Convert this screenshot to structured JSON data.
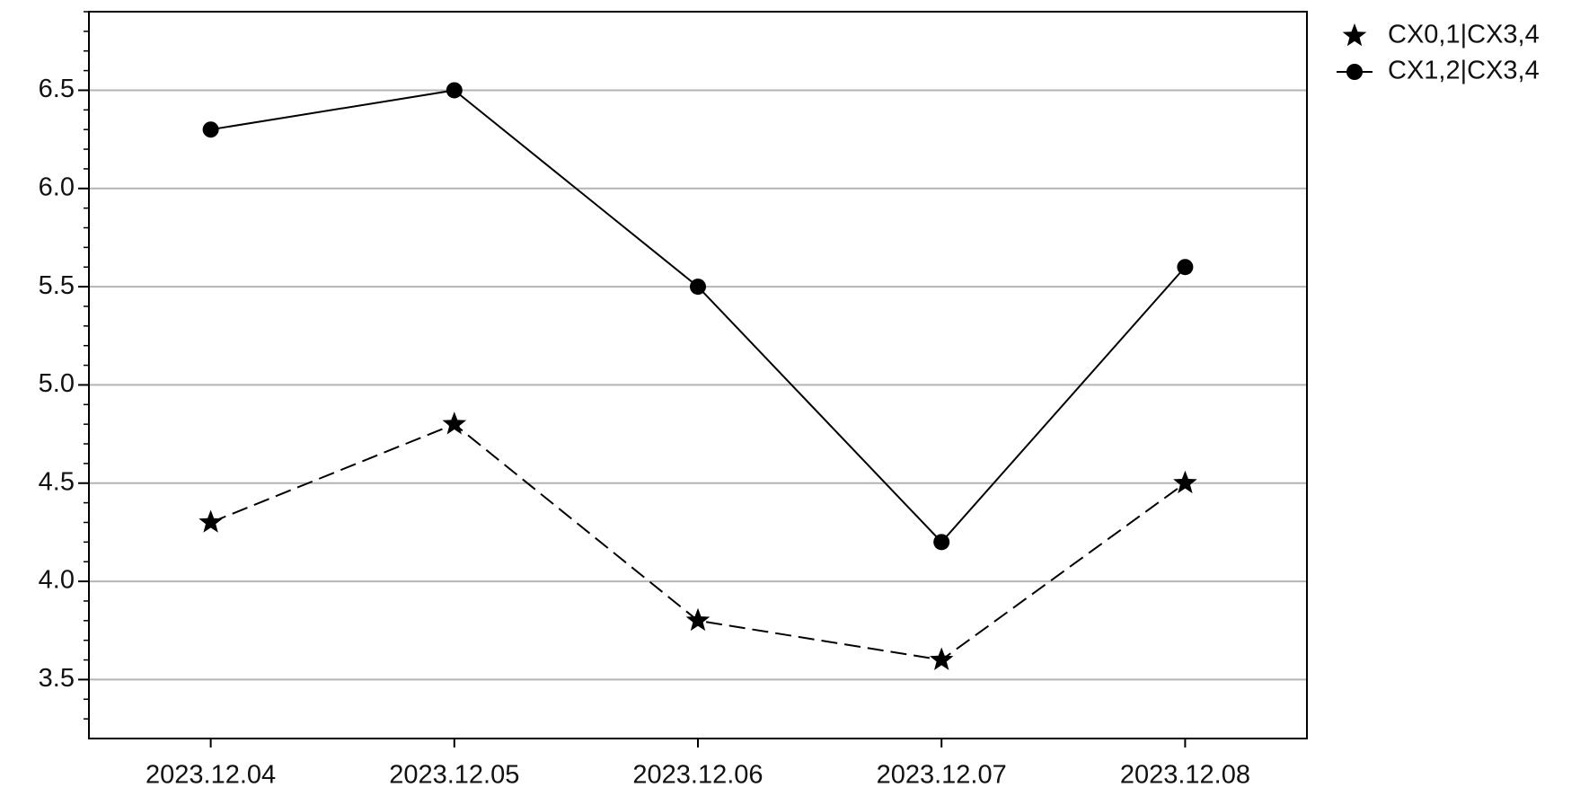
{
  "chart_data": {
    "type": "line",
    "categories": [
      "2023.12.04",
      "2023.12.05",
      "2023.12.06",
      "2023.12.07",
      "2023.12.08"
    ],
    "series": [
      {
        "name": "CX0,1|CX3,4",
        "color": "#000000",
        "marker": "star",
        "linestyle": "dashed",
        "values": [
          4.3,
          4.8,
          3.8,
          3.6,
          4.5
        ]
      },
      {
        "name": "CX1,2|CX3,4",
        "color": "#000000",
        "marker": "circle",
        "linestyle": "solid",
        "values": [
          6.3,
          6.5,
          5.5,
          4.2,
          5.6
        ]
      }
    ],
    "ylim": [
      3.2,
      6.9
    ],
    "yticks": [
      {
        "value": 3.5,
        "label": "3.5"
      },
      {
        "value": 4,
        "label": "4.0"
      },
      {
        "value": 4.5,
        "label": "4.5"
      },
      {
        "value": 5,
        "label": "5.0"
      },
      {
        "value": 5.5,
        "label": "5.5"
      },
      {
        "value": 6,
        "label": "6.0"
      },
      {
        "value": 6.5,
        "label": "6.5"
      }
    ],
    "grid": true,
    "legend": "outside-right"
  }
}
